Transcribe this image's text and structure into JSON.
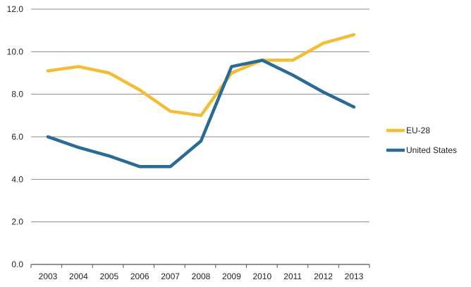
{
  "chart_data": {
    "type": "line",
    "title": "",
    "xlabel": "",
    "ylabel": "",
    "x": [
      "2003",
      "2004",
      "2005",
      "2006",
      "2007",
      "2008",
      "2009",
      "2010",
      "2011",
      "2012",
      "2013"
    ],
    "ylim": [
      0,
      12
    ],
    "yticks": [
      "0.0",
      "2.0",
      "4.0",
      "6.0",
      "8.0",
      "10.0",
      "12.0"
    ],
    "grid": true,
    "legend_position": "right",
    "series": [
      {
        "name": "EU-28",
        "color": "#F2BE37",
        "values": [
          9.1,
          9.3,
          9.0,
          8.2,
          7.2,
          7.0,
          9.0,
          9.6,
          9.6,
          10.4,
          10.8
        ]
      },
      {
        "name": "United States",
        "color": "#2A6B94",
        "values": [
          6.0,
          5.5,
          5.1,
          4.6,
          4.6,
          5.8,
          9.3,
          9.6,
          8.9,
          8.1,
          7.4
        ]
      }
    ]
  }
}
